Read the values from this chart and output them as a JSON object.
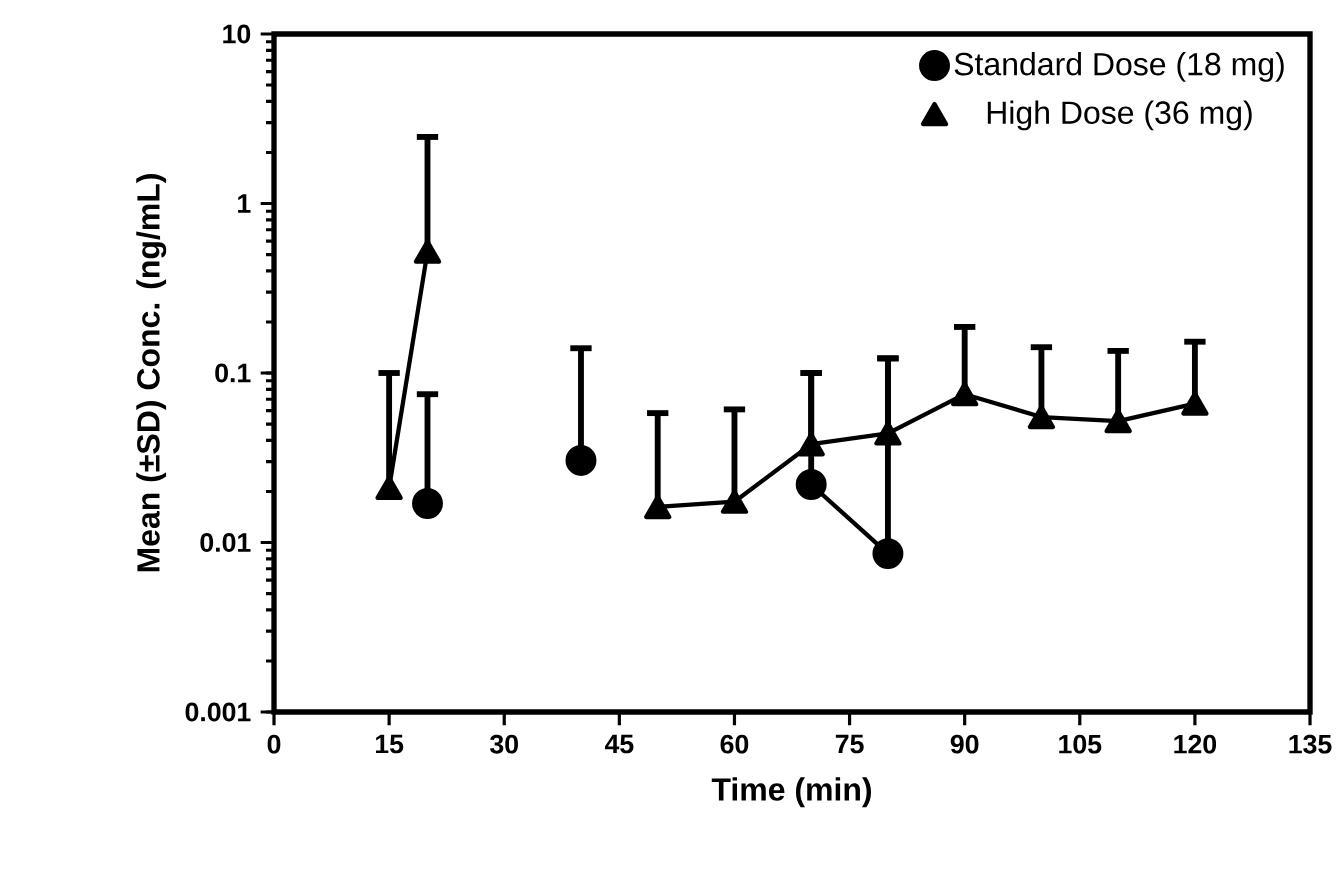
{
  "chart_data": {
    "type": "line",
    "xlabel": "Time (min)",
    "ylabel": "Mean (±SD) Conc. (ng/mL)",
    "xlim": [
      0,
      135
    ],
    "xticks": [
      0,
      15,
      30,
      45,
      60,
      75,
      90,
      105,
      120,
      135
    ],
    "ylim": [
      0.001,
      10
    ],
    "yticks": [
      0.001,
      0.01,
      0.1,
      1,
      10
    ],
    "log": "y",
    "grid": false,
    "legend": "top right",
    "line_style": "solid",
    "series": [
      {
        "name": "Standard Dose (18 mg)",
        "color": "#000000",
        "marker": "circle",
        "x": [
          20,
          30,
          40,
          60,
          70,
          80
        ],
        "values": [
          0.017,
          null,
          0.0305,
          null,
          0.022,
          0.0086
        ],
        "errors": [
          [
            0.017,
            0.075
          ],
          null,
          [
            0.0305,
            0.14
          ],
          null,
          [
            0.022,
            0.1
          ],
          [
            0.0086,
            0.122
          ]
        ]
      },
      {
        "name": "High Dose (36 mg)",
        "color": "#000000",
        "marker": "triangle",
        "x": [
          15,
          20,
          30,
          50,
          60,
          70,
          80,
          90,
          100,
          110,
          120
        ],
        "values": [
          0.021,
          0.52,
          null,
          0.0162,
          0.0174,
          0.038,
          0.044,
          0.075,
          0.055,
          0.052,
          0.066
        ],
        "errors": [
          [
            0.021,
            0.1
          ],
          [
            0.52,
            2.47
          ],
          null,
          [
            0.0162,
            0.058
          ],
          [
            0.0174,
            0.061
          ],
          [
            0.038,
            0.1
          ],
          [
            0.044,
            0.122
          ],
          [
            0.075,
            0.187
          ],
          [
            0.055,
            0.142
          ],
          [
            0.052,
            0.135
          ],
          [
            0.066,
            0.153
          ]
        ]
      }
    ]
  }
}
